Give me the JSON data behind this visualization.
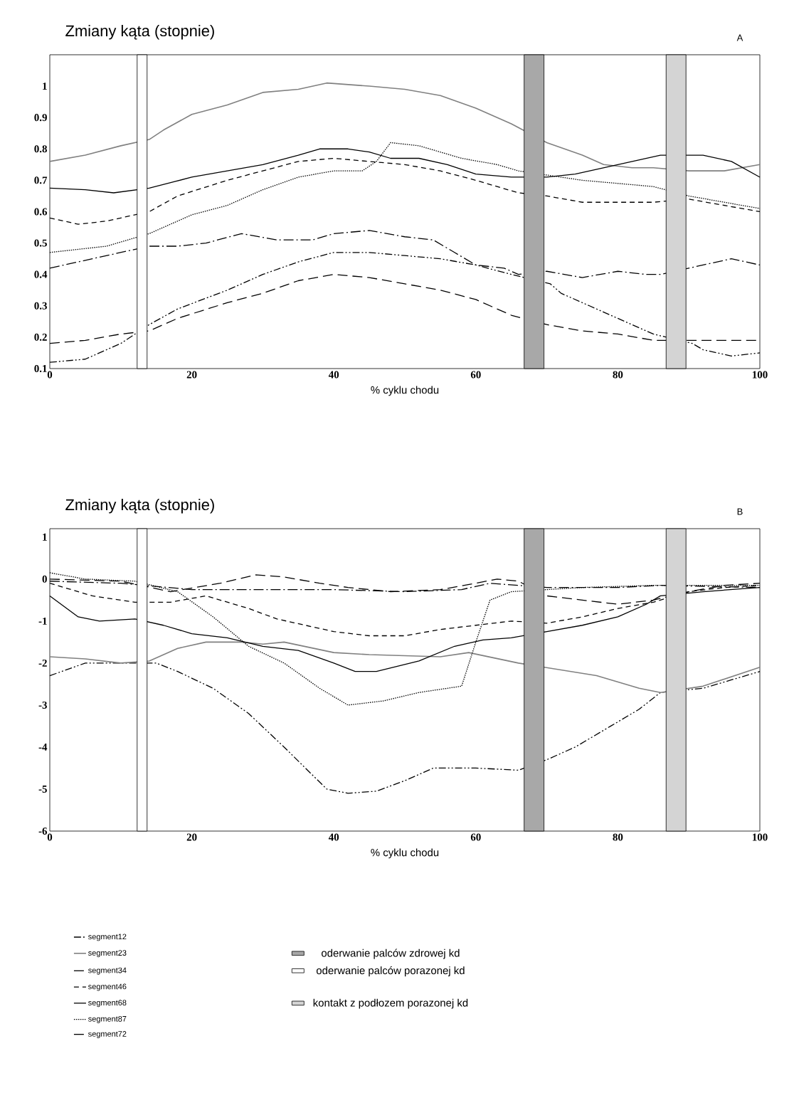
{
  "chart_data": [
    {
      "type": "line",
      "title": "Zmiany kąta (stopnie)",
      "xlabel": "%   cyklu chodu",
      "annotations": [
        "A"
      ],
      "xlim": [
        0,
        100
      ],
      "xticks": [
        0,
        20,
        40,
        60,
        80,
        100
      ],
      "ylim": [
        0.1,
        1.1
      ],
      "yticks": [
        0.1,
        0.2,
        0.3,
        0.4,
        0.5,
        0.6,
        0.7,
        0.8,
        0.9,
        1
      ],
      "grid": false,
      "series": [
        {
          "color": "#000000",
          "line_style": "dashdotdot",
          "x": [
            0,
            5,
            10,
            14,
            18,
            25,
            30,
            35,
            40,
            45,
            50,
            55,
            60,
            65,
            70.5,
            72,
            76,
            80,
            85,
            90.5,
            92,
            96,
            100
          ],
          "values": [
            0.12,
            0.13,
            0.18,
            0.24,
            0.29,
            0.35,
            0.4,
            0.44,
            0.47,
            0.47,
            0.46,
            0.45,
            0.43,
            0.4,
            0.37,
            0.34,
            0.3,
            0.26,
            0.21,
            0.18,
            0.16,
            0.14,
            0.15
          ]
        },
        {
          "color": "#808080",
          "line_style": "solid",
          "x": [
            0,
            5,
            10,
            14,
            16,
            20,
            25,
            30,
            35,
            39,
            45,
            50,
            55,
            60,
            65,
            70,
            75,
            78,
            82,
            85,
            90,
            95,
            100
          ],
          "values": [
            0.76,
            0.78,
            0.81,
            0.83,
            0.86,
            0.91,
            0.94,
            0.98,
            0.99,
            1.01,
            1.0,
            0.99,
            0.97,
            0.93,
            0.88,
            0.82,
            0.78,
            0.75,
            0.74,
            0.74,
            0.73,
            0.73,
            0.75
          ]
        },
        {
          "color": "#000000",
          "line_style": "longdash",
          "x": [
            0,
            5,
            10,
            14,
            18,
            25,
            30,
            35,
            40,
            45,
            50,
            55,
            60,
            65,
            70,
            75,
            80,
            85,
            90,
            95,
            100
          ],
          "values": [
            0.18,
            0.19,
            0.21,
            0.22,
            0.26,
            0.31,
            0.34,
            0.38,
            0.4,
            0.39,
            0.37,
            0.35,
            0.32,
            0.27,
            0.24,
            0.22,
            0.21,
            0.19,
            0.19,
            0.19,
            0.19
          ]
        },
        {
          "color": "#000000",
          "line_style": "dashed",
          "x": [
            0,
            4,
            8,
            14,
            18,
            25,
            30,
            35,
            40,
            45,
            50,
            55,
            60,
            66,
            70,
            75,
            85,
            90,
            95,
            100
          ],
          "values": [
            0.58,
            0.56,
            0.57,
            0.6,
            0.65,
            0.7,
            0.73,
            0.76,
            0.77,
            0.76,
            0.75,
            0.73,
            0.7,
            0.66,
            0.65,
            0.63,
            0.63,
            0.64,
            0.62,
            0.6
          ]
        },
        {
          "color": "#000000",
          "line_style": "solid",
          "x": [
            0,
            5,
            9,
            14,
            20,
            25,
            30,
            35,
            38,
            42,
            45,
            48,
            52,
            56,
            60,
            65,
            70,
            74,
            80,
            86,
            92,
            96,
            100
          ],
          "values": [
            0.675,
            0.67,
            0.66,
            0.675,
            0.71,
            0.73,
            0.75,
            0.78,
            0.8,
            0.8,
            0.79,
            0.77,
            0.77,
            0.75,
            0.72,
            0.71,
            0.71,
            0.72,
            0.75,
            0.78,
            0.78,
            0.76,
            0.71
          ]
        },
        {
          "color": "#000000",
          "line_style": "dotted",
          "x": [
            0,
            8,
            14,
            20,
            25,
            30,
            35,
            40,
            44,
            46,
            48,
            52,
            58,
            63,
            66,
            75,
            85,
            90,
            95,
            100
          ],
          "values": [
            0.47,
            0.49,
            0.53,
            0.59,
            0.62,
            0.67,
            0.71,
            0.73,
            0.73,
            0.76,
            0.82,
            0.81,
            0.77,
            0.75,
            0.73,
            0.7,
            0.68,
            0.65,
            0.63,
            0.61
          ]
        },
        {
          "color": "#000000",
          "line_style": "dashdot",
          "x": [
            0,
            6,
            12,
            14,
            18,
            22,
            27,
            32,
            37,
            40,
            45,
            50,
            54,
            57,
            60,
            64,
            66,
            70,
            75,
            80,
            84,
            86,
            92,
            96,
            100
          ],
          "values": [
            0.42,
            0.45,
            0.48,
            0.49,
            0.49,
            0.5,
            0.53,
            0.51,
            0.51,
            0.53,
            0.54,
            0.52,
            0.51,
            0.47,
            0.43,
            0.42,
            0.4,
            0.41,
            0.39,
            0.41,
            0.4,
            0.4,
            0.43,
            0.45,
            0.43
          ]
        }
      ],
      "bands": [
        {
          "axis": "x",
          "from": 12.3,
          "to": 13.7,
          "color": "#ffffff"
        },
        {
          "axis": "x",
          "from": 66.8,
          "to": 69.6,
          "color": "#a8a8a8"
        },
        {
          "axis": "x",
          "from": 86.8,
          "to": 89.6,
          "color": "#d4d4d4"
        }
      ]
    },
    {
      "type": "line",
      "title": "Zmiany kąta (stopnie)",
      "xlabel": "%   cyklu chodu",
      "annotations": [
        "B"
      ],
      "xlim": [
        0,
        100
      ],
      "xticks": [
        0,
        20,
        40,
        60,
        80,
        100
      ],
      "ylim": [
        -6,
        1.2
      ],
      "yticks": [
        -6,
        -5,
        -4,
        -3,
        -2,
        -1,
        0,
        1
      ],
      "grid": false,
      "legend": "bottom",
      "series": [
        {
          "name": "segment12",
          "color": "#000000",
          "line_style": "dashdotdot",
          "x": [
            0,
            5,
            10,
            15,
            18,
            23,
            28,
            33,
            36,
            39,
            42,
            46,
            50,
            54,
            60,
            66,
            70,
            74,
            79,
            83,
            86,
            92,
            96,
            100
          ],
          "values": [
            -2.3,
            -2.0,
            -2.0,
            -2.0,
            -2.2,
            -2.6,
            -3.2,
            -4.0,
            -4.5,
            -5.0,
            -5.1,
            -5.05,
            -4.8,
            -4.5,
            -4.5,
            -4.55,
            -4.3,
            -4.0,
            -3.5,
            -3.1,
            -2.7,
            -2.6,
            -2.4,
            -2.2
          ]
        },
        {
          "name": "segment23",
          "color": "#808080",
          "line_style": "solid",
          "x": [
            0,
            5,
            10,
            14,
            18,
            22,
            27,
            30,
            33,
            40,
            45,
            55,
            59,
            66,
            77,
            83,
            86,
            92,
            100
          ],
          "values": [
            -1.85,
            -1.9,
            -2.0,
            -1.95,
            -1.65,
            -1.5,
            -1.5,
            -1.55,
            -1.5,
            -1.75,
            -1.8,
            -1.85,
            -1.75,
            -2.0,
            -2.3,
            -2.6,
            -2.7,
            -2.55,
            -2.1
          ]
        },
        {
          "name": "segment34",
          "color": "#000000",
          "line_style": "longdash",
          "x": [
            0,
            10,
            17,
            24,
            29,
            33,
            38,
            42,
            48,
            55,
            60,
            63,
            66,
            70,
            75,
            80,
            85,
            90,
            95,
            100
          ],
          "values": [
            0.0,
            -0.05,
            -0.3,
            -0.1,
            0.1,
            0.05,
            -0.1,
            -0.2,
            -0.3,
            -0.25,
            -0.1,
            0.0,
            -0.05,
            -0.4,
            -0.5,
            -0.6,
            -0.5,
            -0.3,
            -0.15,
            -0.1
          ]
        },
        {
          "name": "segment46",
          "color": "#000000",
          "line_style": "dashed",
          "x": [
            0,
            6,
            12,
            17,
            22,
            28,
            32,
            36,
            40,
            45,
            50,
            55,
            60,
            65,
            70,
            75,
            80,
            85,
            90,
            95,
            100
          ],
          "values": [
            -0.1,
            -0.4,
            -0.55,
            -0.55,
            -0.4,
            -0.7,
            -0.95,
            -1.1,
            -1.25,
            -1.35,
            -1.35,
            -1.2,
            -1.1,
            -1.0,
            -1.05,
            -0.9,
            -0.7,
            -0.55,
            -0.3,
            -0.2,
            -0.15
          ]
        },
        {
          "name": "segment68",
          "color": "#000000",
          "line_style": "solid",
          "x": [
            0,
            4,
            7,
            12,
            16,
            20,
            25,
            30,
            35,
            40,
            43,
            46,
            52,
            57,
            61,
            65,
            70,
            75,
            80,
            84,
            86,
            92,
            100
          ],
          "values": [
            -0.4,
            -0.9,
            -1.0,
            -0.95,
            -1.1,
            -1.3,
            -1.4,
            -1.6,
            -1.7,
            -2.0,
            -2.2,
            -2.2,
            -1.95,
            -1.6,
            -1.45,
            -1.4,
            -1.25,
            -1.1,
            -0.9,
            -0.6,
            -0.4,
            -0.3,
            -0.2
          ]
        },
        {
          "name": "segment87",
          "color": "#000000",
          "line_style": "dotted",
          "x": [
            0,
            5,
            12,
            18,
            23,
            28,
            33,
            38,
            42,
            47,
            52,
            58,
            60,
            62,
            65,
            70,
            75,
            85,
            100
          ],
          "values": [
            0.15,
            0.0,
            -0.05,
            -0.3,
            -0.9,
            -1.6,
            -2.0,
            -2.6,
            -3.0,
            -2.9,
            -2.7,
            -2.55,
            -1.5,
            -0.5,
            -0.3,
            -0.25,
            -0.2,
            -0.15,
            -0.15
          ]
        },
        {
          "name": "segment72",
          "color": "#000000",
          "line_style": "dashdot",
          "x": [
            0,
            10,
            20,
            40,
            50,
            58,
            62,
            70,
            80,
            86,
            100
          ],
          "values": [
            -0.05,
            -0.1,
            -0.25,
            -0.25,
            -0.3,
            -0.25,
            -0.1,
            -0.2,
            -0.2,
            -0.15,
            -0.2
          ]
        }
      ],
      "bands": [
        {
          "axis": "x",
          "from": 12.3,
          "to": 13.7,
          "color": "#ffffff",
          "label": "oderwanie palców porazonej kd"
        },
        {
          "axis": "x",
          "from": 66.8,
          "to": 69.6,
          "color": "#a8a8a8",
          "label": "oderwanie palców zdrowej kd"
        },
        {
          "axis": "x",
          "from": 86.8,
          "to": 89.6,
          "color": "#d4d4d4",
          "label": "kontakt z podłozem porazonej kd"
        }
      ]
    }
  ]
}
